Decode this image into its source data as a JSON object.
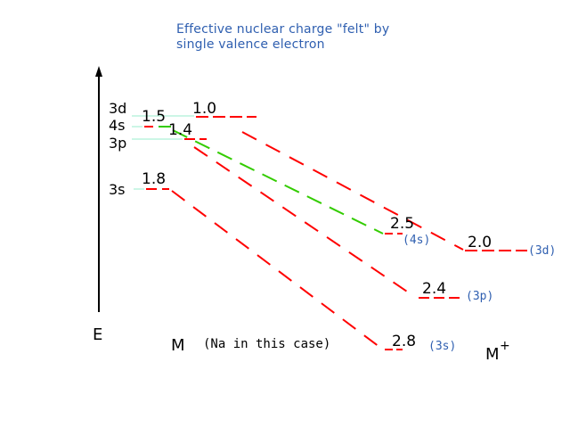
{
  "title_line1": "Effective nuclear charge \"felt\" by",
  "title_line2": "single valence electron",
  "axis_label": "E",
  "left_group_label": "M",
  "left_group_note": "(Na in this case)",
  "right_group_label": "M",
  "right_group_superscript": "+",
  "orbitals": [
    {
      "id": "3d",
      "label": "3d",
      "zeff_left": "1.0",
      "zeff_right": "2.0",
      "right_tag": "(3d)"
    },
    {
      "id": "4s",
      "label": "4s",
      "zeff_left": "1.5",
      "zeff_right": "2.5",
      "right_tag": "(4s)"
    },
    {
      "id": "3p",
      "label": "3p",
      "zeff_left": "1.4",
      "zeff_right": "2.4",
      "right_tag": "(3p)"
    },
    {
      "id": "3s",
      "label": "3s",
      "zeff_left": "1.8",
      "zeff_right": "2.8",
      "right_tag": "(3s)"
    }
  ],
  "colors": {
    "level": "#ff0000",
    "highlight": "#33cc00",
    "guide": "#99eecc",
    "tag": "#2f5fb0",
    "text": "#000000"
  }
}
